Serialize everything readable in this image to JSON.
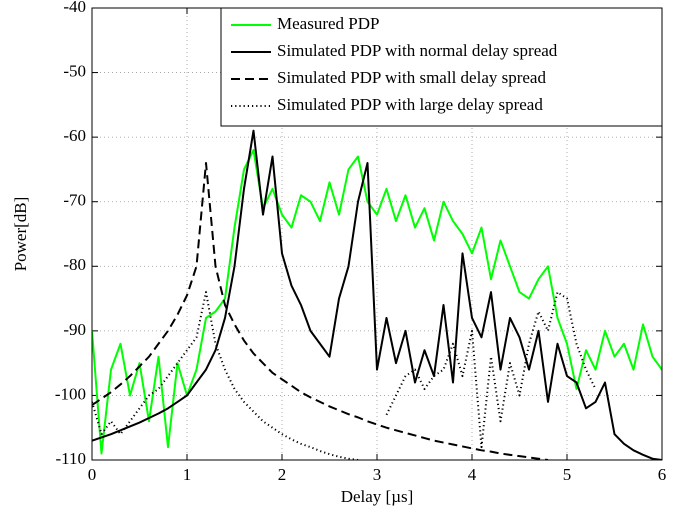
{
  "chart_data": {
    "type": "line",
    "xlabel": "Delay [µs]",
    "ylabel": "Power[dB]",
    "x": [
      0,
      0.1,
      0.2,
      0.3,
      0.4,
      0.5,
      0.6,
      0.7,
      0.8,
      0.9,
      1,
      1.1,
      1.2,
      1.3,
      1.4,
      1.5,
      1.6,
      1.7,
      1.8,
      1.9,
      2,
      2.1,
      2.2,
      2.3,
      2.4,
      2.5,
      2.6,
      2.7,
      2.8,
      2.9,
      3,
      3.1,
      3.2,
      3.3,
      3.4,
      3.5,
      3.6,
      3.7,
      3.8,
      3.9,
      4,
      4.1,
      4.2,
      4.3,
      4.4,
      4.5,
      4.6,
      4.7,
      4.8,
      4.9,
      5,
      5.1,
      5.2,
      5.3,
      5.4,
      5.5,
      5.6,
      5.7,
      5.8,
      5.9,
      6
    ],
    "series": [
      {
        "name": "Measured PDP",
        "color": "#00ff00",
        "linestyle": "solid",
        "values": [
          -90,
          -109,
          -96,
          -92,
          -100,
          -95,
          -104,
          -94,
          -108,
          -95,
          -100,
          -96,
          -88,
          -87,
          -85,
          -74,
          -65,
          -62,
          -71,
          -68,
          -72,
          -74,
          -69,
          -70,
          -73,
          -67,
          -72,
          -65,
          -63,
          -70,
          -72,
          -68,
          -73,
          -69,
          -74,
          -71,
          -76,
          -70,
          -73,
          -75,
          -78,
          -74,
          -82,
          -76,
          -80,
          -84,
          -85,
          -82,
          -80,
          -88,
          -92,
          -99,
          -93,
          -96,
          -90,
          -94,
          -92,
          -96,
          -89,
          -94,
          -96
        ]
      },
      {
        "name": "Simulated PDP with normal delay spread",
        "color": "#000000",
        "linestyle": "solid",
        "values": [
          -107,
          -106.5,
          -106,
          -105.4,
          -104.8,
          -104.2,
          -103.5,
          -102.8,
          -102,
          -101,
          -100,
          -98,
          -96,
          -93,
          -88,
          -80,
          -68,
          -59,
          -72,
          -63,
          -78,
          -83,
          -86,
          -90,
          -92,
          -94,
          -85,
          -80,
          -70,
          -64,
          -96,
          -88,
          -95,
          -90,
          -98,
          -93,
          -97,
          -86,
          -98,
          -78,
          -88,
          -91,
          -84,
          -96,
          -88,
          -91,
          -96,
          -90,
          -101,
          -92,
          -97,
          -98,
          -102,
          -101,
          -98,
          -106,
          -107.5,
          -108.5,
          -109.2,
          -109.8,
          -110
        ]
      },
      {
        "name": "Simulated PDP with small delay spread",
        "color": "#000000",
        "linestyle": "dashed",
        "values": [
          -101.5,
          -100.5,
          -99.5,
          -98.3,
          -97,
          -95.5,
          -94,
          -92,
          -90,
          -87.5,
          -84.5,
          -80,
          -64,
          -80,
          -86,
          -89,
          -91.5,
          -93.5,
          -95,
          -96.5,
          -97.5,
          -98.5,
          -99.5,
          -100.3,
          -101,
          -101.7,
          -102.3,
          -102.9,
          -103.4,
          -104,
          -104.5,
          -105,
          -105.4,
          -105.8,
          -106.2,
          -106.6,
          -107,
          -107.3,
          -107.6,
          -107.9,
          -108.2,
          -108.5,
          -108.7,
          -109,
          -109.2,
          -109.4,
          -109.6,
          -109.8,
          -110,
          null,
          null,
          null,
          null,
          null,
          null,
          null,
          null,
          null,
          null,
          null,
          null
        ]
      },
      {
        "name": "Simulated PDP with large delay spread",
        "color": "#000000",
        "linestyle": "dotted",
        "values": [
          -101,
          -106,
          -104,
          -106,
          -104,
          -102,
          -100,
          -99,
          -97,
          -95,
          -93,
          -91,
          -84,
          -92,
          -96,
          -99,
          -101,
          -102.5,
          -104,
          -105,
          -106,
          -106.8,
          -107.5,
          -108,
          -108.6,
          -109.1,
          -109.5,
          -109.8,
          -110,
          null,
          null,
          -103,
          -100,
          -97,
          -96,
          -99,
          -97,
          -96,
          -92,
          -97,
          -90,
          -108,
          -94,
          -104,
          -95,
          -100,
          -92,
          -87,
          -90,
          -84,
          -85,
          -92,
          -96,
          -99,
          null,
          null,
          -105,
          null,
          null,
          null,
          null
        ]
      }
    ],
    "xlim": [
      0,
      6
    ],
    "ylim": [
      -110,
      -40
    ],
    "xticks": [
      0,
      1,
      2,
      3,
      4,
      5,
      6
    ],
    "yticks": [
      -110,
      -100,
      -90,
      -80,
      -70,
      -60,
      -50,
      -40
    ],
    "grid": true,
    "legend": "top-right"
  }
}
